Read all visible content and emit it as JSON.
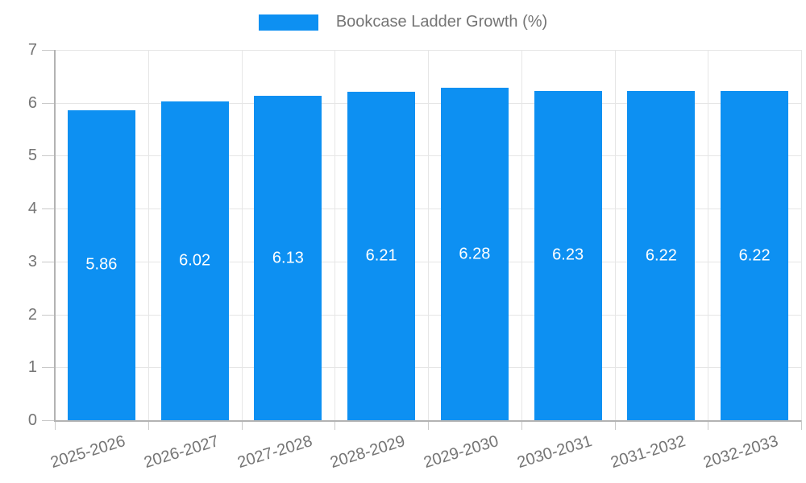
{
  "legend": {
    "label": "Bookcase Ladder Growth (%)"
  },
  "chart_data": {
    "type": "bar",
    "title": "Bookcase Ladder Growth (%)",
    "categories": [
      "2025-2026",
      "2026-2027",
      "2027-2028",
      "2028-2029",
      "2029-2030",
      "2030-2031",
      "2031-2032",
      "2032-2033"
    ],
    "values": [
      5.86,
      6.02,
      6.13,
      6.21,
      6.28,
      6.23,
      6.22,
      6.22
    ],
    "value_labels": [
      "5.86",
      "6.02",
      "6.13",
      "6.21",
      "6.28",
      "6.23",
      "6.22",
      "6.22"
    ],
    "xlabel": "",
    "ylabel": "",
    "ylim": [
      0,
      7
    ],
    "ytick_step": 1,
    "ytick_labels": [
      "0",
      "1",
      "2",
      "3",
      "4",
      "5",
      "6",
      "7"
    ],
    "grid": true,
    "legend_position": "top-center",
    "colors": {
      "bar": "#0d90f2",
      "grid": "#e6e6e6",
      "axis": "#b3b3b3",
      "tick": "#c9c9c9",
      "label": "#757575",
      "value_label": "#ffffff",
      "background": "#ffffff"
    }
  }
}
